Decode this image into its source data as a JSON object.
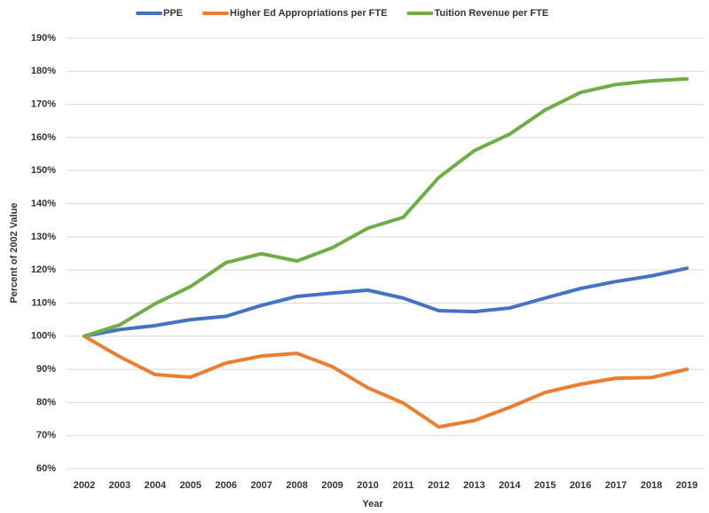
{
  "chart_data": {
    "type": "line",
    "x_label": "Year",
    "y_label": "Percent of 2002 Value",
    "categories": [
      "2002",
      "2003",
      "2004",
      "2005",
      "2006",
      "2007",
      "2008",
      "2009",
      "2010",
      "2011",
      "2012",
      "2013",
      "2014",
      "2015",
      "2016",
      "2017",
      "2018",
      "2019"
    ],
    "series": [
      {
        "name": "PPE",
        "color": "#4472c4",
        "values": [
          100,
          102,
          103.2,
          105,
          106,
          109.3,
          112,
          113,
          113.9,
          111.5,
          107.7,
          107.4,
          108.5,
          111.5,
          114.4,
          116.5,
          118.2,
          120.5
        ]
      },
      {
        "name": "Higher Ed Appropriations per FTE",
        "color": "#ed7d31",
        "values": [
          100,
          93.8,
          88.4,
          87.6,
          91.9,
          94,
          94.8,
          90.8,
          84.4,
          79.8,
          72.6,
          74.5,
          78.5,
          83,
          85.5,
          87.3,
          87.5,
          90
        ]
      },
      {
        "name": "Tuition Revenue per FTE",
        "color": "#70ad47",
        "values": [
          100,
          103.4,
          109.8,
          115,
          122.2,
          124.9,
          122.7,
          126.7,
          132.6,
          135.9,
          147.9,
          156,
          161,
          168.3,
          173.6,
          176,
          177.1,
          177.7
        ]
      }
    ],
    "ylim": [
      60,
      190
    ],
    "yticks": [
      {
        "value": 60,
        "label": "60%"
      },
      {
        "value": 70,
        "label": "70%"
      },
      {
        "value": 80,
        "label": "80%"
      },
      {
        "value": 90,
        "label": "90%"
      },
      {
        "value": 100,
        "label": "100%"
      },
      {
        "value": 110,
        "label": "110%"
      },
      {
        "value": 120,
        "label": "120%"
      },
      {
        "value": 130,
        "label": "130%"
      },
      {
        "value": 140,
        "label": "140%"
      },
      {
        "value": 150,
        "label": "150%"
      },
      {
        "value": 160,
        "label": "160%"
      },
      {
        "value": 170,
        "label": "170%"
      },
      {
        "value": 180,
        "label": "180%"
      },
      {
        "value": 190,
        "label": "190%"
      }
    ],
    "grid": true,
    "legend": "top"
  }
}
